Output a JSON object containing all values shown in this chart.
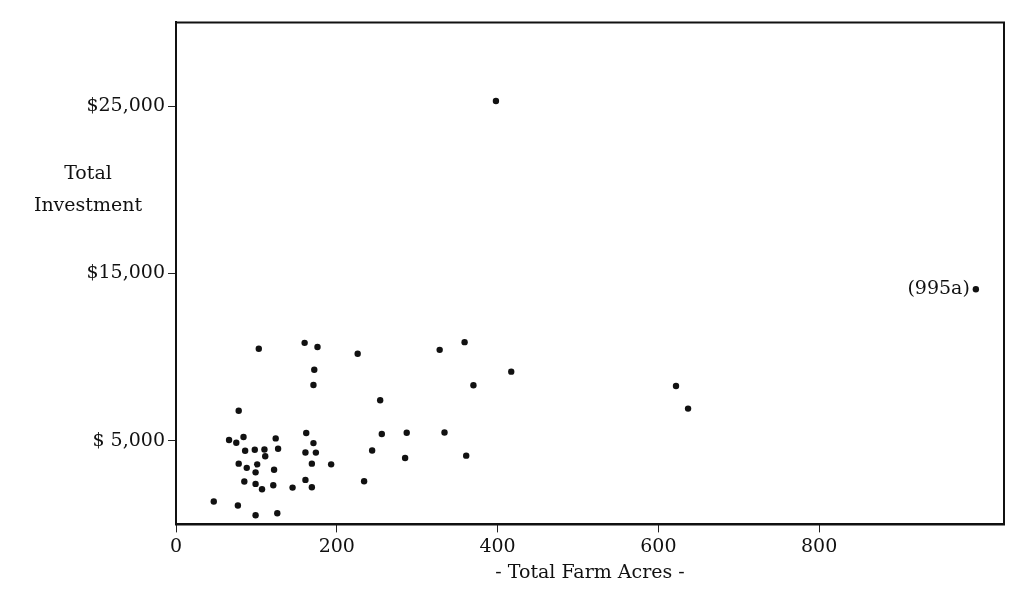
{
  "chart_data": {
    "type": "scatter",
    "xlabel": "- Total Farm Acres -",
    "ylabel": "Total Investment",
    "xlim": [
      0,
      1030
    ],
    "ylim": [
      0,
      30000
    ],
    "xticks": [
      0,
      200,
      400,
      600,
      800
    ],
    "yticks": [
      {
        "value": 5000,
        "label": "$ 5,000"
      },
      {
        "value": 15000,
        "label": "$15,000"
      },
      {
        "value": 25000,
        "label": "$25,000"
      }
    ],
    "grid": false,
    "legend": false,
    "marker": "circle",
    "series": [
      {
        "color": "#111111",
        "x": [
          103,
          160,
          176,
          226,
          172,
          171,
          78,
          66,
          75,
          84,
          124,
          162,
          171,
          86,
          98,
          110,
          127,
          111,
          161,
          174,
          244,
          78,
          88,
          101,
          99,
          122,
          169,
          193,
          85,
          99,
          107,
          121,
          145,
          161,
          169,
          234,
          47,
          77,
          99,
          126,
          328,
          359,
          417,
          370,
          254,
          622,
          637,
          256,
          287,
          334,
          285,
          361,
          398,
          995
        ],
        "values": [
          10500,
          10850,
          10600,
          10200,
          9240,
          8330,
          6790,
          5040,
          4880,
          5220,
          5140,
          5460,
          4860,
          4400,
          4460,
          4480,
          4520,
          4070,
          4300,
          4290,
          4420,
          3630,
          3380,
          3590,
          3110,
          3270,
          3630,
          3590,
          2560,
          2420,
          2100,
          2340,
          2200,
          2660,
          2220,
          2580,
          1370,
          1130,
          550,
          670,
          10430,
          10890,
          9130,
          8320,
          7420,
          8270,
          6920,
          5400,
          5480,
          5490,
          3970,
          4110,
          25300,
          14050
        ]
      }
    ],
    "annotations": [
      {
        "text": "(995a)",
        "x": 995,
        "y": 14050
      }
    ]
  }
}
